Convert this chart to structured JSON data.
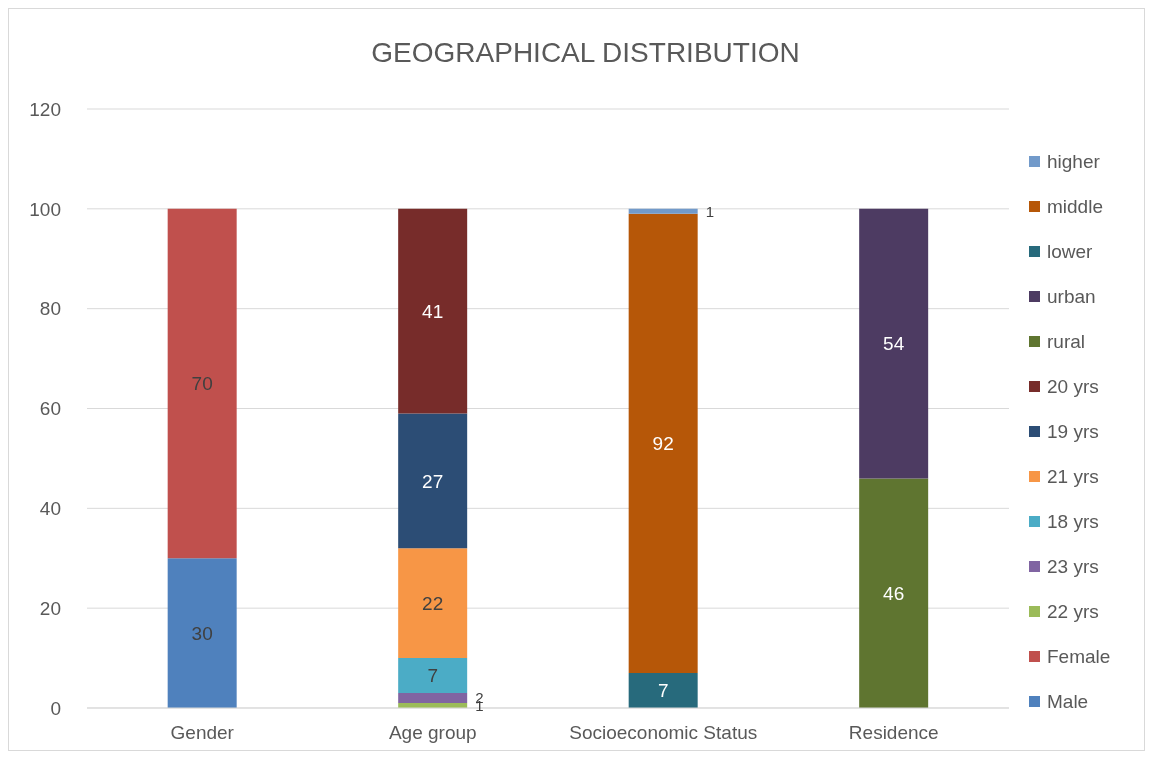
{
  "chart_data": {
    "type": "bar",
    "title": "GEOGRAPHICAL DISTRIBUTION",
    "categories": [
      "Gender",
      "Age group",
      "Socioeconomic Status",
      "Residence"
    ],
    "stacked": true,
    "data_labels": true,
    "grid": "y",
    "legend": "right",
    "ylim": [
      0,
      120
    ],
    "yticks": [
      0,
      20,
      40,
      60,
      80,
      100,
      120
    ],
    "series": [
      {
        "name": "Male",
        "color": "#4f81bd",
        "values": [
          30,
          null,
          null,
          null
        ]
      },
      {
        "name": "Female",
        "color": "#c0504d",
        "values": [
          70,
          null,
          null,
          null
        ]
      },
      {
        "name": "22 yrs",
        "color": "#9bbb59",
        "values": [
          null,
          1,
          null,
          null
        ]
      },
      {
        "name": "23 yrs",
        "color": "#8064a2",
        "values": [
          null,
          2,
          null,
          null
        ]
      },
      {
        "name": "18 yrs",
        "color": "#4bacc6",
        "values": [
          null,
          7,
          null,
          null
        ]
      },
      {
        "name": "21 yrs",
        "color": "#f79646",
        "values": [
          null,
          22,
          null,
          null
        ]
      },
      {
        "name": "19 yrs",
        "color": "#2c4d75",
        "values": [
          null,
          27,
          null,
          null
        ]
      },
      {
        "name": "20 yrs",
        "color": "#772c2a",
        "values": [
          null,
          41,
          null,
          null
        ]
      },
      {
        "name": "rural",
        "color": "#5f7530",
        "values": [
          null,
          null,
          null,
          46
        ]
      },
      {
        "name": "urban",
        "color": "#4d3b62",
        "values": [
          null,
          null,
          null,
          54
        ]
      },
      {
        "name": "lower",
        "color": "#276a7c",
        "values": [
          null,
          null,
          7,
          null
        ]
      },
      {
        "name": "middle",
        "color": "#b65708",
        "values": [
          null,
          null,
          92,
          null
        ]
      },
      {
        "name": "higher",
        "color": "#729aca",
        "values": [
          null,
          null,
          1,
          null
        ]
      }
    ]
  }
}
